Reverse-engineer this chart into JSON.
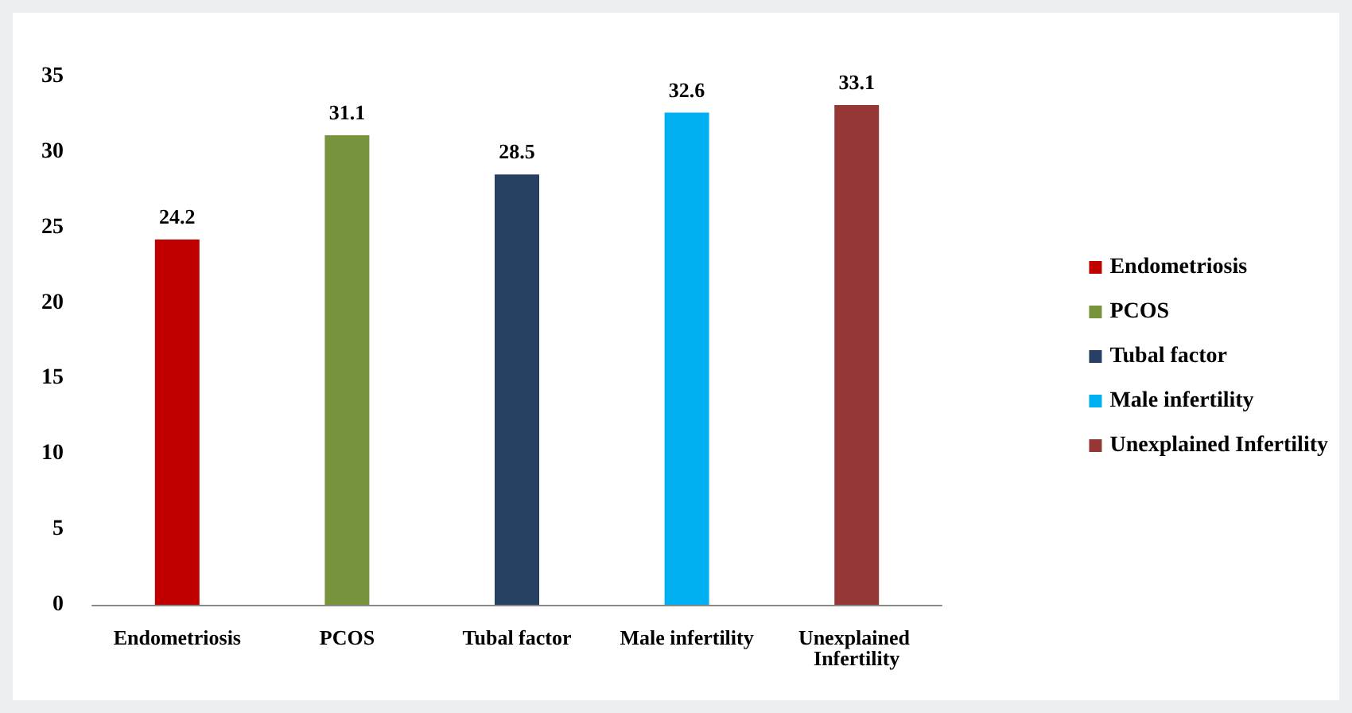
{
  "chart_data": {
    "type": "bar",
    "categories": [
      "Endometriosis",
      "PCOS",
      "Tubal factor",
      "Male infertility",
      "Unexplained Infertility"
    ],
    "series": [
      {
        "name": "Endometriosis",
        "color": "#c00000",
        "values": [
          24.2,
          null,
          null,
          null,
          null
        ]
      },
      {
        "name": "PCOS",
        "color": "#77933c",
        "values": [
          null,
          31.1,
          null,
          null,
          null
        ]
      },
      {
        "name": "Tubal factor",
        "color": "#254061",
        "values": [
          null,
          null,
          28.5,
          null,
          null
        ]
      },
      {
        "name": "Male infertility",
        "color": "#00b0f0",
        "values": [
          null,
          null,
          null,
          32.6,
          null
        ]
      },
      {
        "name": "Unexplained Infertility",
        "color": "#953735",
        "values": [
          null,
          null,
          null,
          null,
          33.1
        ]
      }
    ],
    "ylim": [
      0,
      35
    ],
    "yticks": [
      0,
      5,
      10,
      15,
      20,
      25,
      30,
      35
    ],
    "data_labels": true,
    "grid": false,
    "legend": "right"
  }
}
